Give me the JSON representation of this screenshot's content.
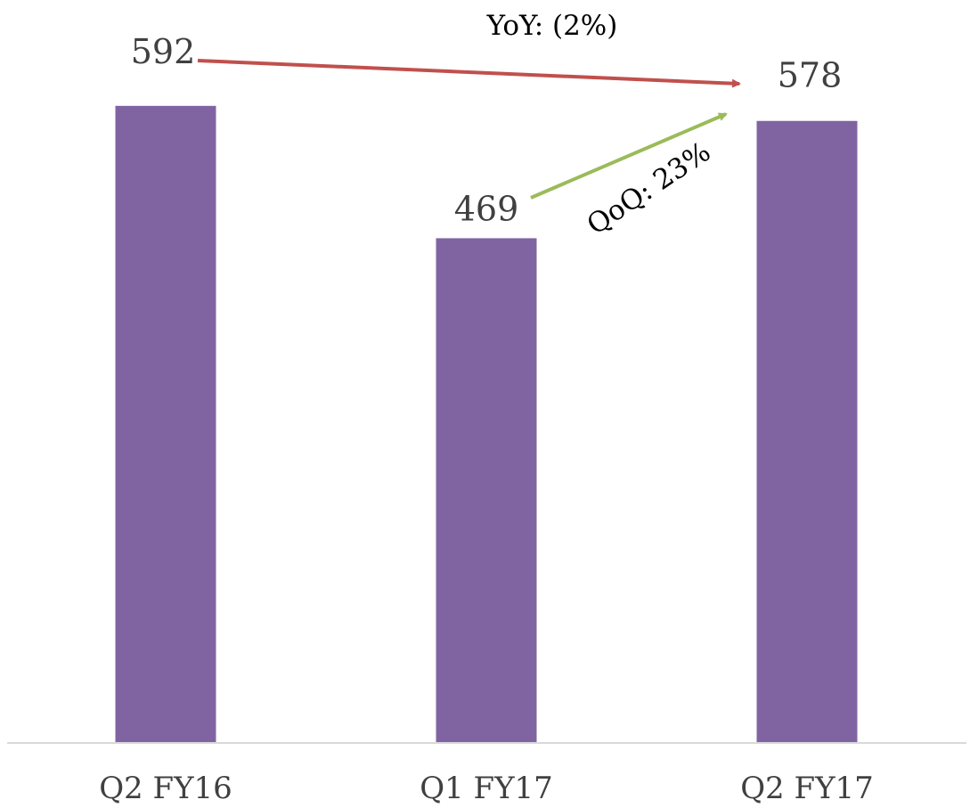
{
  "chart_data": {
    "type": "bar",
    "categories": [
      "Q2 FY16",
      "Q1 FY17",
      "Q2 FY17"
    ],
    "values": [
      592,
      469,
      578
    ],
    "data_labels": [
      "592",
      "469",
      "578"
    ],
    "ylim": [
      0,
      620
    ],
    "grid": false,
    "legend": "none",
    "title": "",
    "xlabel": "",
    "ylabel": "",
    "colors": {
      "bar": "#8064A2",
      "axis": "#D9D9D9",
      "yoy_arrow": "#C0504D",
      "qoq_arrow": "#9BBB59"
    },
    "annotations": {
      "yoy": "YoY: (2%)",
      "qoq": "QoQ: 23%"
    }
  }
}
